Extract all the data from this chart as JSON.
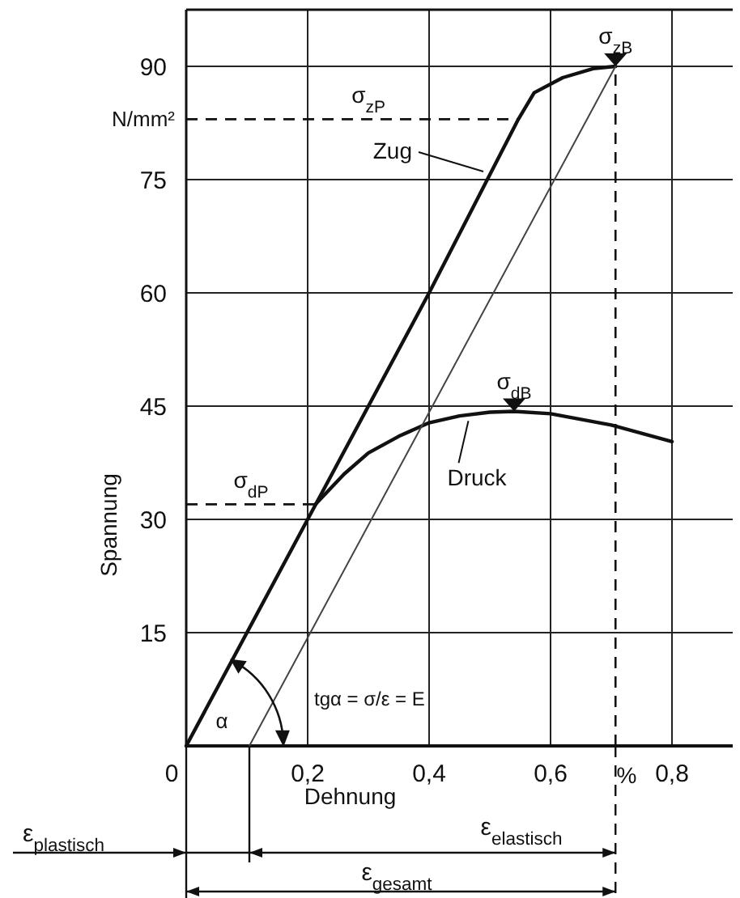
{
  "chart_data": {
    "type": "line",
    "xlabel": "Dehnung",
    "ylabel": "Spannung",
    "xlim": [
      0,
      0.9
    ],
    "ylim": [
      0,
      97.5
    ],
    "xticks": [
      {
        "value": 0,
        "label": "0"
      },
      {
        "value": 0.2,
        "label": "0,2"
      },
      {
        "value": 0.4,
        "label": "0,4"
      },
      {
        "value": 0.6,
        "label": "0,6"
      },
      {
        "value": 0.8,
        "label": "0,8"
      }
    ],
    "yticks": [
      15,
      30,
      45,
      60,
      75,
      90
    ],
    "grid": true,
    "marker": "none",
    "line_style": "solid",
    "series": [
      {
        "name": "Zug",
        "color": "#111111",
        "x": [
          0,
          0.2,
          0.4,
          0.547,
          0.573,
          0.62,
          0.67,
          0.707
        ],
        "values": [
          0,
          30,
          60,
          83,
          86.5,
          88.5,
          89.7,
          90
        ]
      },
      {
        "name": "Druck",
        "color": "#111111",
        "x": [
          0.213,
          0.26,
          0.3,
          0.35,
          0.4,
          0.45,
          0.5,
          0.54,
          0.6,
          0.7,
          0.8
        ],
        "values": [
          32,
          36,
          38.8,
          41,
          42.8,
          43.7,
          44.2,
          44.3,
          44,
          42.5,
          40.3
        ]
      },
      {
        "color": "#444444",
        "x": [
          0.104,
          0.707
        ],
        "values": [
          0,
          90
        ]
      }
    ],
    "ref_lines": [
      {
        "axis": "y",
        "value": 83,
        "label": "σ$_{zP}$",
        "line_style": "dashed"
      },
      {
        "axis": "y",
        "value": 32,
        "label": "σ$_{dP}$",
        "line_style": "dashed"
      },
      {
        "axis": "x",
        "value": 0.707,
        "line_style": "dashed"
      }
    ],
    "annotations": [
      {
        "text": "σ$_{zB}$",
        "x": 0.707,
        "y": 90
      },
      {
        "text": "σ$_{dB}$",
        "x": 0.54,
        "y": 44.3
      },
      "α",
      "tgα = σ/ε = E",
      "N/mm²",
      "%",
      "ε$_{plastisch}$",
      "ε$_{elastisch}$",
      "ε$_{gesamt}$"
    ]
  }
}
